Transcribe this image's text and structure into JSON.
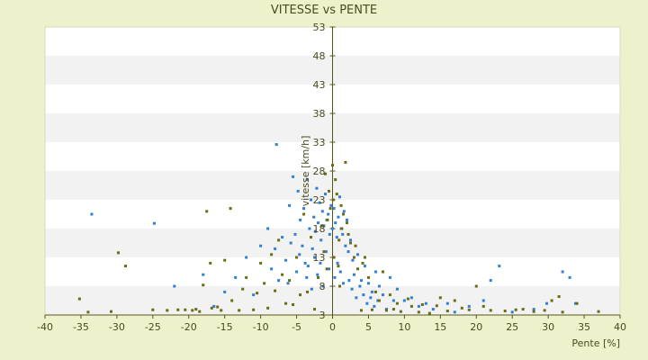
{
  "chart_data": {
    "type": "scatter",
    "title": "VITESSE vs PENTE",
    "xlabel": "Pente [%]",
    "ylabel": "vitesse [km/h]",
    "xlim": [
      -40,
      40
    ],
    "ylim": [
      3,
      53
    ],
    "x_ticks": [
      "-40",
      "-35",
      "-30",
      "-25",
      "-20",
      "-15",
      "-10",
      "-5",
      "0",
      "5",
      "10",
      "15",
      "20",
      "25",
      "30",
      "35",
      "40"
    ],
    "y_ticks": [
      "53",
      "48",
      "43",
      "38",
      "33",
      "28",
      "23",
      "18",
      "13",
      "8",
      "3"
    ],
    "grid": true,
    "legend": "none",
    "colors": {
      "background": "#eef2cc",
      "plot_band_light": "#ffffff",
      "plot_band_dark": "#f2f2f2",
      "axis": "#55551c",
      "series_a": "#2f7fd6",
      "series_b": "#6b6b10"
    },
    "series": [
      {
        "values": [
          [
            -33.5,
            20.5
          ],
          [
            -24.8,
            18.9
          ],
          [
            -7.8,
            32.6
          ],
          [
            -6.0,
            22.0
          ],
          [
            -5.5,
            27.0
          ],
          [
            -5.2,
            17.0
          ],
          [
            -4.8,
            24.5
          ],
          [
            -4.5,
            19.5
          ],
          [
            -4.2,
            15.0
          ],
          [
            -4.0,
            21.5
          ],
          [
            -3.8,
            12.0
          ],
          [
            -3.5,
            26.5
          ],
          [
            -3.2,
            18.0
          ],
          [
            -3.0,
            23.0
          ],
          [
            -2.8,
            14.5
          ],
          [
            -2.6,
            20.0
          ],
          [
            -2.4,
            17.5
          ],
          [
            -2.2,
            25.0
          ],
          [
            -2.0,
            19.0
          ],
          [
            -1.8,
            22.5
          ],
          [
            -1.6,
            16.0
          ],
          [
            -1.4,
            21.0
          ],
          [
            -1.2,
            18.5
          ],
          [
            -1.0,
            24.0
          ],
          [
            -0.8,
            19.5
          ],
          [
            -0.6,
            20.5
          ],
          [
            -0.4,
            17.0
          ],
          [
            -0.2,
            22.0
          ],
          [
            0.0,
            18.0
          ],
          [
            0.2,
            21.5
          ],
          [
            0.4,
            19.0
          ],
          [
            0.6,
            16.5
          ],
          [
            0.8,
            20.0
          ],
          [
            1.0,
            23.5
          ],
          [
            1.2,
            18.0
          ],
          [
            1.4,
            17.0
          ],
          [
            1.6,
            21.0
          ],
          [
            1.8,
            15.0
          ],
          [
            2.0,
            19.5
          ],
          [
            2.2,
            14.0
          ],
          [
            2.5,
            16.0
          ],
          [
            2.8,
            12.5
          ],
          [
            3.0,
            10.0
          ],
          [
            3.5,
            13.5
          ],
          [
            4.0,
            9.0
          ],
          [
            4.5,
            11.5
          ],
          [
            5.0,
            8.5
          ],
          [
            5.5,
            7.0
          ],
          [
            6.0,
            10.5
          ],
          [
            6.5,
            8.0
          ],
          [
            7.0,
            6.5
          ],
          [
            8.0,
            9.5
          ],
          [
            9.0,
            7.5
          ],
          [
            10.0,
            5.5
          ],
          [
            11.0,
            6.0
          ],
          [
            12.0,
            4.5
          ],
          [
            13.0,
            5.0
          ],
          [
            14.0,
            4.0
          ],
          [
            16.0,
            5.0
          ],
          [
            17.0,
            3.5
          ],
          [
            19.0,
            4.5
          ],
          [
            21.0,
            5.5
          ],
          [
            22.0,
            9.0
          ],
          [
            23.2,
            11.5
          ],
          [
            25.0,
            3.5
          ],
          [
            28.0,
            4.0
          ],
          [
            29.8,
            5.0
          ],
          [
            32.0,
            10.5
          ],
          [
            33.0,
            9.5
          ],
          [
            33.8,
            5.0
          ],
          [
            -22.0,
            8.0
          ],
          [
            -18.0,
            10.0
          ],
          [
            -16.5,
            4.5
          ],
          [
            -15.0,
            7.0
          ],
          [
            -13.5,
            9.5
          ],
          [
            -12.0,
            13.0
          ],
          [
            -11.0,
            6.5
          ],
          [
            -10.0,
            15.0
          ],
          [
            -9.0,
            18.0
          ],
          [
            -8.5,
            11.0
          ],
          [
            -8.0,
            14.5
          ],
          [
            -7.5,
            9.0
          ],
          [
            -7.0,
            16.5
          ],
          [
            -6.5,
            12.5
          ],
          [
            -6.2,
            8.5
          ],
          [
            -5.8,
            15.5
          ],
          [
            -5.0,
            10.5
          ],
          [
            -4.6,
            13.5
          ],
          [
            -3.6,
            9.5
          ],
          [
            -3.4,
            11.5
          ],
          [
            -2.9,
            7.5
          ],
          [
            -2.5,
            13.0
          ],
          [
            -2.1,
            10.0
          ],
          [
            -1.7,
            12.0
          ],
          [
            -1.3,
            8.0
          ],
          [
            -0.9,
            14.0
          ],
          [
            -0.5,
            11.0
          ],
          [
            0.3,
            9.5
          ],
          [
            0.7,
            12.0
          ],
          [
            1.1,
            10.5
          ],
          [
            1.5,
            8.5
          ],
          [
            2.3,
            9.0
          ],
          [
            2.7,
            7.5
          ],
          [
            3.3,
            6.0
          ],
          [
            3.8,
            8.0
          ],
          [
            4.3,
            6.5
          ],
          [
            4.8,
            5.0
          ],
          [
            5.3,
            6.0
          ],
          [
            5.8,
            4.5
          ],
          [
            6.3,
            5.5
          ],
          [
            7.5,
            4.0
          ],
          [
            8.5,
            5.5
          ]
        ]
      },
      {
        "values": [
          [
            -35.2,
            5.8
          ],
          [
            -34.0,
            3.5
          ],
          [
            -30.8,
            3.6
          ],
          [
            -29.8,
            13.8
          ],
          [
            -28.8,
            11.5
          ],
          [
            -25.0,
            3.9
          ],
          [
            -23.0,
            3.8
          ],
          [
            -20.5,
            3.9
          ],
          [
            -19.5,
            3.8
          ],
          [
            -18.5,
            3.6
          ],
          [
            -18.0,
            8.2
          ],
          [
            -17.5,
            21.0
          ],
          [
            -17.0,
            12.0
          ],
          [
            -16.8,
            4.2
          ],
          [
            -16.0,
            4.4
          ],
          [
            -15.5,
            3.8
          ],
          [
            -15.0,
            12.5
          ],
          [
            -14.2,
            21.5
          ],
          [
            -14.0,
            5.5
          ],
          [
            -13.0,
            3.8
          ],
          [
            -12.5,
            7.5
          ],
          [
            -12.0,
            9.5
          ],
          [
            -11.0,
            3.9
          ],
          [
            -10.5,
            6.8
          ],
          [
            -10.0,
            12.0
          ],
          [
            -9.5,
            8.5
          ],
          [
            -9.0,
            4.2
          ],
          [
            -8.5,
            13.5
          ],
          [
            -8.0,
            7.2
          ],
          [
            -7.5,
            16.0
          ],
          [
            -7.0,
            10.0
          ],
          [
            -6.5,
            5.0
          ],
          [
            -6.0,
            9.0
          ],
          [
            -5.5,
            4.8
          ],
          [
            -5.0,
            13.0
          ],
          [
            -4.5,
            6.5
          ],
          [
            -4.0,
            20.5
          ],
          [
            -3.5,
            7.0
          ],
          [
            -3.0,
            16.5
          ],
          [
            -2.5,
            4.0
          ],
          [
            -2.0,
            9.5
          ],
          [
            -1.5,
            18.5
          ],
          [
            -1.2,
            14.0
          ],
          [
            -1.0,
            27.5
          ],
          [
            -0.8,
            11.0
          ],
          [
            -0.5,
            24.5
          ],
          [
            -0.3,
            21.5
          ],
          [
            0.0,
            29.0
          ],
          [
            0.2,
            13.0
          ],
          [
            0.4,
            26.5
          ],
          [
            0.6,
            24.0
          ],
          [
            0.8,
            11.5
          ],
          [
            1.0,
            8.0
          ],
          [
            1.2,
            22.0
          ],
          [
            1.5,
            20.5
          ],
          [
            1.8,
            29.5
          ],
          [
            2.0,
            19.0
          ],
          [
            2.5,
            15.5
          ],
          [
            3.0,
            13.0
          ],
          [
            3.5,
            11.0
          ],
          [
            4.0,
            3.8
          ],
          [
            4.5,
            13.0
          ],
          [
            5.0,
            9.5
          ],
          [
            5.5,
            3.9
          ],
          [
            6.0,
            7.0
          ],
          [
            6.5,
            5.5
          ],
          [
            7.0,
            10.5
          ],
          [
            7.5,
            3.8
          ],
          [
            8.0,
            6.5
          ],
          [
            8.5,
            4.0
          ],
          [
            9.0,
            5.0
          ],
          [
            9.5,
            3.6
          ],
          [
            10.5,
            5.8
          ],
          [
            11.0,
            4.5
          ],
          [
            12.0,
            3.5
          ],
          [
            12.5,
            4.8
          ],
          [
            13.5,
            3.3
          ],
          [
            14.5,
            4.6
          ],
          [
            15.0,
            6.0
          ],
          [
            16.0,
            3.7
          ],
          [
            17.0,
            5.5
          ],
          [
            18.0,
            4.2
          ],
          [
            19.0,
            3.9
          ],
          [
            20.0,
            8.0
          ],
          [
            21.0,
            4.5
          ],
          [
            22.0,
            3.8
          ],
          [
            24.0,
            3.7
          ],
          [
            25.5,
            3.9
          ],
          [
            26.5,
            4.0
          ],
          [
            28.0,
            3.6
          ],
          [
            29.5,
            3.8
          ],
          [
            30.5,
            5.5
          ],
          [
            31.5,
            6.2
          ],
          [
            32.0,
            3.5
          ],
          [
            34.0,
            5.0
          ],
          [
            37.0,
            3.6
          ],
          [
            -19.0,
            4.0
          ],
          [
            -21.5,
            3.9
          ],
          [
            -0.7,
            19.5
          ],
          [
            0.1,
            23.0
          ],
          [
            0.9,
            16.0
          ],
          [
            1.3,
            18.0
          ],
          [
            2.2,
            17.0
          ],
          [
            3.2,
            15.0
          ],
          [
            4.2,
            12.0
          ]
        ]
      }
    ]
  }
}
